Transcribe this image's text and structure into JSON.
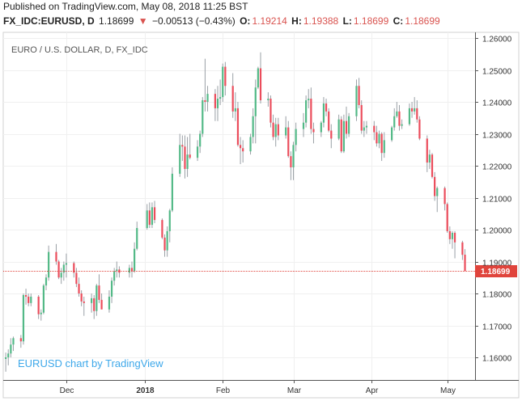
{
  "header": {
    "published": "Published on TradingView.com, May 08, 2018 11:25 BST",
    "symbol": "FX_IDC:EURUSD, D",
    "last": "1.18699",
    "change_arrow": "▼",
    "change": "−0.00513 (−0.43%)",
    "o_label": "O:",
    "o_value": "1.19214",
    "h_label": "H:",
    "h_value": "1.19388",
    "l_label": "L:",
    "l_value": "1.18699",
    "c_label": "C:",
    "c_value": "1.18699"
  },
  "colors": {
    "up": "#53b987",
    "down": "#eb4d5c",
    "wick": "#9aa0a6",
    "grid": "#f0f0f0",
    "axis": "#555555",
    "price_line": "#e0443c",
    "watermark": "#3ea8ea"
  },
  "chart_data": {
    "type": "candlestick",
    "title": "EURO / U.S. DOLLAR, D, FX_IDC",
    "watermark": "EURUSD chart by TradingView",
    "ylim": [
      1.155,
      1.262
    ],
    "yticks": [
      "1.26000",
      "1.25000",
      "1.24000",
      "1.23000",
      "1.22000",
      "1.21000",
      "1.20000",
      "1.19000",
      "1.18000",
      "1.17000",
      "1.16000"
    ],
    "xlim": [
      "2017-11-06",
      "2018-05-12"
    ],
    "xticks": [
      {
        "date": "2017-12-01",
        "label": "Dec",
        "bold": false
      },
      {
        "date": "2018-01-01",
        "label": "2018",
        "bold": true
      },
      {
        "date": "2018-02-01",
        "label": "Feb",
        "bold": false
      },
      {
        "date": "2018-03-01",
        "label": "Mar",
        "bold": false
      },
      {
        "date": "2018-04-01",
        "label": "Apr",
        "bold": false
      },
      {
        "date": "2018-05-01",
        "label": "May",
        "bold": false
      }
    ],
    "last_price": 1.18699,
    "last_price_label": "1.18699",
    "candles": [
      {
        "date": "2017-11-07",
        "o": 1.1595,
        "h": 1.1615,
        "l": 1.1555,
        "c": 1.16
      },
      {
        "date": "2017-11-08",
        "o": 1.16,
        "h": 1.1625,
        "l": 1.1575,
        "c": 1.1612
      },
      {
        "date": "2017-11-09",
        "o": 1.1612,
        "h": 1.166,
        "l": 1.16,
        "c": 1.164
      },
      {
        "date": "2017-11-10",
        "o": 1.164,
        "h": 1.1665,
        "l": 1.162,
        "c": 1.166
      },
      {
        "date": "2017-11-13",
        "o": 1.166,
        "h": 1.167,
        "l": 1.163,
        "c": 1.165
      },
      {
        "date": "2017-11-14",
        "o": 1.165,
        "h": 1.18,
        "l": 1.164,
        "c": 1.1795
      },
      {
        "date": "2017-11-15",
        "o": 1.1795,
        "h": 1.1815,
        "l": 1.1765,
        "c": 1.179
      },
      {
        "date": "2017-11-16",
        "o": 1.179,
        "h": 1.18,
        "l": 1.176,
        "c": 1.177
      },
      {
        "date": "2017-11-17",
        "o": 1.177,
        "h": 1.18,
        "l": 1.176,
        "c": 1.179
      },
      {
        "date": "2017-11-20",
        "o": 1.179,
        "h": 1.1795,
        "l": 1.172,
        "c": 1.1735
      },
      {
        "date": "2017-11-21",
        "o": 1.1735,
        "h": 1.175,
        "l": 1.1715,
        "c": 1.174
      },
      {
        "date": "2017-11-22",
        "o": 1.174,
        "h": 1.183,
        "l": 1.1735,
        "c": 1.1825
      },
      {
        "date": "2017-11-23",
        "o": 1.1825,
        "h": 1.186,
        "l": 1.181,
        "c": 1.185
      },
      {
        "date": "2017-11-24",
        "o": 1.185,
        "h": 1.195,
        "l": 1.184,
        "c": 1.193
      },
      {
        "date": "2017-11-27",
        "o": 1.193,
        "h": 1.1955,
        "l": 1.189,
        "c": 1.19
      },
      {
        "date": "2017-11-28",
        "o": 1.19,
        "h": 1.1905,
        "l": 1.1845,
        "c": 1.185
      },
      {
        "date": "2017-11-29",
        "o": 1.185,
        "h": 1.188,
        "l": 1.183,
        "c": 1.1865
      },
      {
        "date": "2017-11-30",
        "o": 1.1865,
        "h": 1.19,
        "l": 1.184,
        "c": 1.189
      },
      {
        "date": "2017-12-01",
        "o": 1.189,
        "h": 1.1925,
        "l": 1.185,
        "c": 1.1895
      },
      {
        "date": "2017-12-04",
        "o": 1.1895,
        "h": 1.19,
        "l": 1.185,
        "c": 1.1865
      },
      {
        "date": "2017-12-05",
        "o": 1.1865,
        "h": 1.188,
        "l": 1.182,
        "c": 1.183
      },
      {
        "date": "2017-12-06",
        "o": 1.183,
        "h": 1.185,
        "l": 1.179,
        "c": 1.18
      },
      {
        "date": "2017-12-07",
        "o": 1.18,
        "h": 1.181,
        "l": 1.176,
        "c": 1.1775
      },
      {
        "date": "2017-12-08",
        "o": 1.1775,
        "h": 1.179,
        "l": 1.173,
        "c": 1.177
      },
      {
        "date": "2017-12-11",
        "o": 1.177,
        "h": 1.18,
        "l": 1.174,
        "c": 1.1785
      },
      {
        "date": "2017-12-12",
        "o": 1.1785,
        "h": 1.1795,
        "l": 1.172,
        "c": 1.1745
      },
      {
        "date": "2017-12-13",
        "o": 1.1745,
        "h": 1.183,
        "l": 1.173,
        "c": 1.1825
      },
      {
        "date": "2017-12-14",
        "o": 1.1825,
        "h": 1.186,
        "l": 1.177,
        "c": 1.178
      },
      {
        "date": "2017-12-15",
        "o": 1.178,
        "h": 1.18,
        "l": 1.176,
        "c": 1.175
      },
      {
        "date": "2017-12-18",
        "o": 1.175,
        "h": 1.181,
        "l": 1.174,
        "c": 1.179
      },
      {
        "date": "2017-12-19",
        "o": 1.179,
        "h": 1.185,
        "l": 1.177,
        "c": 1.184
      },
      {
        "date": "2017-12-20",
        "o": 1.184,
        "h": 1.188,
        "l": 1.1825,
        "c": 1.187
      },
      {
        "date": "2017-12-21",
        "o": 1.187,
        "h": 1.19,
        "l": 1.185,
        "c": 1.1875
      },
      {
        "date": "2017-12-22",
        "o": 1.1875,
        "h": 1.1885,
        "l": 1.185,
        "c": 1.1865
      },
      {
        "date": "2017-12-26",
        "o": 1.1865,
        "h": 1.189,
        "l": 1.185,
        "c": 1.188
      },
      {
        "date": "2017-12-27",
        "o": 1.188,
        "h": 1.19,
        "l": 1.185,
        "c": 1.187
      },
      {
        "date": "2017-12-28",
        "o": 1.187,
        "h": 1.196,
        "l": 1.1865,
        "c": 1.194
      },
      {
        "date": "2017-12-29",
        "o": 1.194,
        "h": 1.2025,
        "l": 1.1935,
        "c": 1.2005
      },
      {
        "date": "2018-01-02",
        "o": 1.2005,
        "h": 1.208,
        "l": 1.2,
        "c": 1.206
      },
      {
        "date": "2018-01-03",
        "o": 1.206,
        "h": 1.2085,
        "l": 1.2005,
        "c": 1.2015
      },
      {
        "date": "2018-01-04",
        "o": 1.2015,
        "h": 1.2085,
        "l": 1.2005,
        "c": 1.207
      },
      {
        "date": "2018-01-05",
        "o": 1.207,
        "h": 1.209,
        "l": 1.202,
        "c": 1.203
      },
      {
        "date": "2018-01-08",
        "o": 1.203,
        "h": 1.2035,
        "l": 1.197,
        "c": 1.1975
      },
      {
        "date": "2018-01-09",
        "o": 1.1975,
        "h": 1.1985,
        "l": 1.1915,
        "c": 1.1935
      },
      {
        "date": "2018-01-10",
        "o": 1.1935,
        "h": 1.201,
        "l": 1.1915,
        "c": 1.1995
      },
      {
        "date": "2018-01-11",
        "o": 1.1995,
        "h": 1.2065,
        "l": 1.196,
        "c": 1.206
      },
      {
        "date": "2018-01-12",
        "o": 1.206,
        "h": 1.2195,
        "l": 1.2055,
        "c": 1.2175
      },
      {
        "date": "2018-01-15",
        "o": 1.2175,
        "h": 1.23,
        "l": 1.2165,
        "c": 1.2265
      },
      {
        "date": "2018-01-16",
        "o": 1.2265,
        "h": 1.2295,
        "l": 1.2215,
        "c": 1.226
      },
      {
        "date": "2018-01-17",
        "o": 1.226,
        "h": 1.2295,
        "l": 1.216,
        "c": 1.219
      },
      {
        "date": "2018-01-18",
        "o": 1.219,
        "h": 1.229,
        "l": 1.2165,
        "c": 1.2235
      },
      {
        "date": "2018-01-19",
        "o": 1.2235,
        "h": 1.23,
        "l": 1.222,
        "c": 1.2225
      },
      {
        "date": "2018-01-22",
        "o": 1.2225,
        "h": 1.228,
        "l": 1.2215,
        "c": 1.226
      },
      {
        "date": "2018-01-23",
        "o": 1.226,
        "h": 1.231,
        "l": 1.224,
        "c": 1.23
      },
      {
        "date": "2018-01-24",
        "o": 1.23,
        "h": 1.2415,
        "l": 1.229,
        "c": 1.2405
      },
      {
        "date": "2018-01-25",
        "o": 1.2405,
        "h": 1.2535,
        "l": 1.237,
        "c": 1.24
      },
      {
        "date": "2018-01-26",
        "o": 1.24,
        "h": 1.245,
        "l": 1.237,
        "c": 1.2425
      },
      {
        "date": "2018-01-29",
        "o": 1.2425,
        "h": 1.244,
        "l": 1.234,
        "c": 1.238
      },
      {
        "date": "2018-01-30",
        "o": 1.238,
        "h": 1.245,
        "l": 1.234,
        "c": 1.241
      },
      {
        "date": "2018-01-31",
        "o": 1.241,
        "h": 1.247,
        "l": 1.239,
        "c": 1.2415
      },
      {
        "date": "2018-02-01",
        "o": 1.2415,
        "h": 1.252,
        "l": 1.24,
        "c": 1.251
      },
      {
        "date": "2018-02-02",
        "o": 1.251,
        "h": 1.2525,
        "l": 1.242,
        "c": 1.245
      },
      {
        "date": "2018-02-05",
        "o": 1.245,
        "h": 1.249,
        "l": 1.235,
        "c": 1.237
      },
      {
        "date": "2018-02-06",
        "o": 1.237,
        "h": 1.243,
        "l": 1.234,
        "c": 1.238
      },
      {
        "date": "2018-02-07",
        "o": 1.238,
        "h": 1.24,
        "l": 1.226,
        "c": 1.2265
      },
      {
        "date": "2018-02-08",
        "o": 1.2265,
        "h": 1.229,
        "l": 1.2205,
        "c": 1.2255
      },
      {
        "date": "2018-02-09",
        "o": 1.2255,
        "h": 1.228,
        "l": 1.221,
        "c": 1.2245
      },
      {
        "date": "2018-02-12",
        "o": 1.2245,
        "h": 1.23,
        "l": 1.2235,
        "c": 1.229
      },
      {
        "date": "2018-02-13",
        "o": 1.229,
        "h": 1.238,
        "l": 1.227,
        "c": 1.2355
      },
      {
        "date": "2018-02-14",
        "o": 1.2355,
        "h": 1.247,
        "l": 1.227,
        "c": 1.2445
      },
      {
        "date": "2018-02-15",
        "o": 1.2445,
        "h": 1.251,
        "l": 1.244,
        "c": 1.2505
      },
      {
        "date": "2018-02-16",
        "o": 1.2505,
        "h": 1.2555,
        "l": 1.2395,
        "c": 1.2405
      },
      {
        "date": "2018-02-19",
        "o": 1.2405,
        "h": 1.243,
        "l": 1.2385,
        "c": 1.241
      },
      {
        "date": "2018-02-20",
        "o": 1.241,
        "h": 1.242,
        "l": 1.232,
        "c": 1.2335
      },
      {
        "date": "2018-02-21",
        "o": 1.2335,
        "h": 1.236,
        "l": 1.228,
        "c": 1.229
      },
      {
        "date": "2018-02-22",
        "o": 1.229,
        "h": 1.235,
        "l": 1.226,
        "c": 1.233
      },
      {
        "date": "2018-02-23",
        "o": 1.233,
        "h": 1.235,
        "l": 1.228,
        "c": 1.2295
      },
      {
        "date": "2018-02-26",
        "o": 1.2295,
        "h": 1.2355,
        "l": 1.2285,
        "c": 1.232
      },
      {
        "date": "2018-02-27",
        "o": 1.232,
        "h": 1.234,
        "l": 1.2225,
        "c": 1.223
      },
      {
        "date": "2018-02-28",
        "o": 1.223,
        "h": 1.2245,
        "l": 1.2155,
        "c": 1.2195
      },
      {
        "date": "2018-03-01",
        "o": 1.2195,
        "h": 1.2275,
        "l": 1.2155,
        "c": 1.2265
      },
      {
        "date": "2018-03-02",
        "o": 1.2265,
        "h": 1.2335,
        "l": 1.2245,
        "c": 1.2315
      },
      {
        "date": "2018-03-05",
        "o": 1.2315,
        "h": 1.2365,
        "l": 1.229,
        "c": 1.2335
      },
      {
        "date": "2018-03-06",
        "o": 1.2335,
        "h": 1.242,
        "l": 1.232,
        "c": 1.2405
      },
      {
        "date": "2018-03-07",
        "o": 1.2405,
        "h": 1.244,
        "l": 1.238,
        "c": 1.241
      },
      {
        "date": "2018-03-08",
        "o": 1.241,
        "h": 1.2445,
        "l": 1.23,
        "c": 1.2315
      },
      {
        "date": "2018-03-09",
        "o": 1.2315,
        "h": 1.2335,
        "l": 1.227,
        "c": 1.2305
      },
      {
        "date": "2018-03-12",
        "o": 1.2305,
        "h": 1.234,
        "l": 1.229,
        "c": 1.2335
      },
      {
        "date": "2018-03-13",
        "o": 1.2335,
        "h": 1.2415,
        "l": 1.232,
        "c": 1.2395
      },
      {
        "date": "2018-03-14",
        "o": 1.2395,
        "h": 1.241,
        "l": 1.2355,
        "c": 1.237
      },
      {
        "date": "2018-03-15",
        "o": 1.237,
        "h": 1.238,
        "l": 1.2305,
        "c": 1.231
      },
      {
        "date": "2018-03-16",
        "o": 1.231,
        "h": 1.233,
        "l": 1.2255,
        "c": 1.2285
      },
      {
        "date": "2018-03-19",
        "o": 1.2285,
        "h": 1.236,
        "l": 1.228,
        "c": 1.2345
      },
      {
        "date": "2018-03-20",
        "o": 1.2345,
        "h": 1.2355,
        "l": 1.224,
        "c": 1.2245
      },
      {
        "date": "2018-03-21",
        "o": 1.2245,
        "h": 1.236,
        "l": 1.224,
        "c": 1.234
      },
      {
        "date": "2018-03-22",
        "o": 1.234,
        "h": 1.2385,
        "l": 1.2285,
        "c": 1.23
      },
      {
        "date": "2018-03-23",
        "o": 1.23,
        "h": 1.2365,
        "l": 1.229,
        "c": 1.2355
      },
      {
        "date": "2018-03-26",
        "o": 1.2355,
        "h": 1.247,
        "l": 1.234,
        "c": 1.245
      },
      {
        "date": "2018-03-27",
        "o": 1.245,
        "h": 1.2475,
        "l": 1.238,
        "c": 1.239
      },
      {
        "date": "2018-03-28",
        "o": 1.239,
        "h": 1.2405,
        "l": 1.23,
        "c": 1.231
      },
      {
        "date": "2018-03-29",
        "o": 1.231,
        "h": 1.234,
        "l": 1.229,
        "c": 1.232
      },
      {
        "date": "2018-03-30",
        "o": 1.232,
        "h": 1.234,
        "l": 1.23,
        "c": 1.2325
      },
      {
        "date": "2018-04-02",
        "o": 1.2325,
        "h": 1.234,
        "l": 1.228,
        "c": 1.2305
      },
      {
        "date": "2018-04-03",
        "o": 1.2305,
        "h": 1.2325,
        "l": 1.226,
        "c": 1.227
      },
      {
        "date": "2018-04-04",
        "o": 1.227,
        "h": 1.231,
        "l": 1.2255,
        "c": 1.23
      },
      {
        "date": "2018-04-05",
        "o": 1.23,
        "h": 1.2305,
        "l": 1.2215,
        "c": 1.224
      },
      {
        "date": "2018-04-06",
        "o": 1.224,
        "h": 1.2305,
        "l": 1.2225,
        "c": 1.228
      },
      {
        "date": "2018-04-09",
        "o": 1.228,
        "h": 1.2325,
        "l": 1.2275,
        "c": 1.232
      },
      {
        "date": "2018-04-10",
        "o": 1.232,
        "h": 1.238,
        "l": 1.231,
        "c": 1.2355
      },
      {
        "date": "2018-04-11",
        "o": 1.2355,
        "h": 1.24,
        "l": 1.235,
        "c": 1.237
      },
      {
        "date": "2018-04-12",
        "o": 1.237,
        "h": 1.239,
        "l": 1.231,
        "c": 1.2325
      },
      {
        "date": "2018-04-13",
        "o": 1.2325,
        "h": 1.2345,
        "l": 1.2315,
        "c": 1.233
      },
      {
        "date": "2018-04-16",
        "o": 1.233,
        "h": 1.2395,
        "l": 1.2325,
        "c": 1.238
      },
      {
        "date": "2018-04-17",
        "o": 1.238,
        "h": 1.24,
        "l": 1.235,
        "c": 1.237
      },
      {
        "date": "2018-04-18",
        "o": 1.237,
        "h": 1.2415,
        "l": 1.236,
        "c": 1.238
      },
      {
        "date": "2018-04-19",
        "o": 1.238,
        "h": 1.2405,
        "l": 1.2335,
        "c": 1.2345
      },
      {
        "date": "2018-04-20",
        "o": 1.2345,
        "h": 1.2355,
        "l": 1.228,
        "c": 1.2285
      },
      {
        "date": "2018-04-23",
        "o": 1.2285,
        "h": 1.2295,
        "l": 1.218,
        "c": 1.221
      },
      {
        "date": "2018-04-24",
        "o": 1.221,
        "h": 1.225,
        "l": 1.219,
        "c": 1.2235
      },
      {
        "date": "2018-04-25",
        "o": 1.2235,
        "h": 1.224,
        "l": 1.216,
        "c": 1.2165
      },
      {
        "date": "2018-04-26",
        "o": 1.2165,
        "h": 1.218,
        "l": 1.209,
        "c": 1.2105
      },
      {
        "date": "2018-04-27",
        "o": 1.2105,
        "h": 1.2135,
        "l": 1.2055,
        "c": 1.213
      },
      {
        "date": "2018-04-30",
        "o": 1.213,
        "h": 1.2135,
        "l": 1.206,
        "c": 1.208
      },
      {
        "date": "2018-05-01",
        "o": 1.208,
        "h": 1.2085,
        "l": 1.199,
        "c": 1.1995
      },
      {
        "date": "2018-05-02",
        "o": 1.1995,
        "h": 1.201,
        "l": 1.1955,
        "c": 1.197
      },
      {
        "date": "2018-05-03",
        "o": 1.197,
        "h": 1.1995,
        "l": 1.194,
        "c": 1.199
      },
      {
        "date": "2018-05-04",
        "o": 1.199,
        "h": 1.1995,
        "l": 1.191,
        "c": 1.196
      },
      {
        "date": "2018-05-07",
        "o": 1.196,
        "h": 1.1965,
        "l": 1.1905,
        "c": 1.1921
      },
      {
        "date": "2018-05-08",
        "o": 1.19214,
        "h": 1.19388,
        "l": 1.18699,
        "c": 1.18699
      }
    ]
  }
}
